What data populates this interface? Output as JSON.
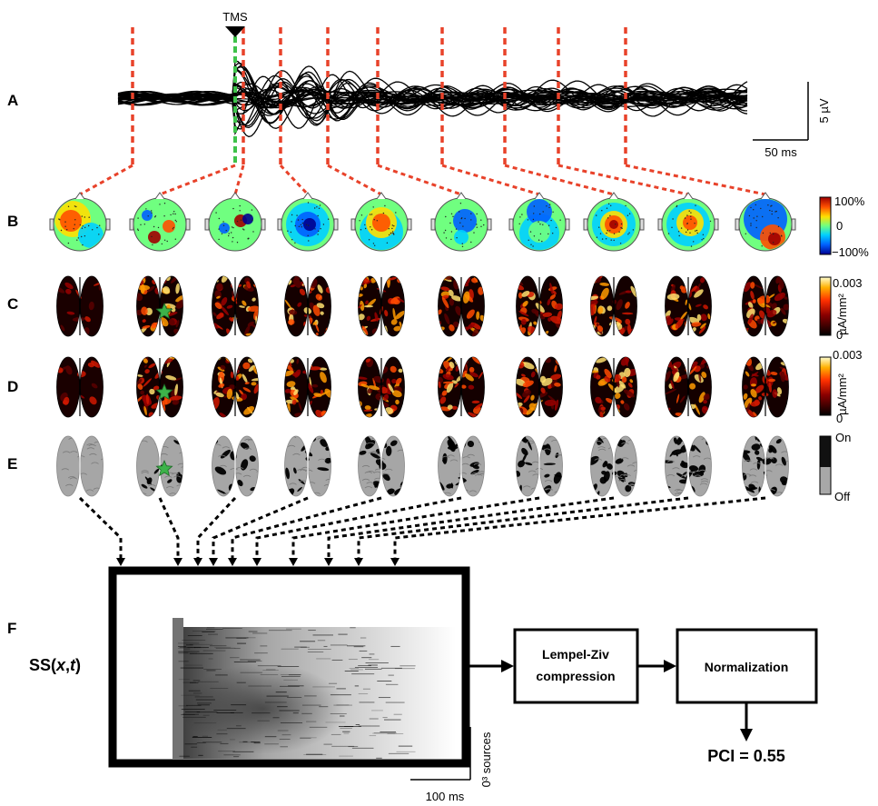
{
  "panel_labels": [
    "A",
    "B",
    "C",
    "D",
    "E",
    "F"
  ],
  "panel_a": {
    "stim_label": "TMS",
    "scale_y_label": "5 µV",
    "scale_x_label": "50 ms"
  },
  "panel_b": {
    "colorbar_ticks": [
      "100%",
      "0",
      "−100%"
    ],
    "colormap": [
      "#00008f",
      "#0060ff",
      "#00d0ff",
      "#70ff80",
      "#ffe000",
      "#ff5000",
      "#a00000"
    ]
  },
  "panel_c": {
    "colorbar_top": "0.003",
    "colorbar_bottom": "0",
    "colorbar_unit": "µA/mm²"
  },
  "panel_d": {
    "colorbar_top": "0.003",
    "colorbar_bottom": "0",
    "colorbar_unit": "µA/mm²"
  },
  "panel_e": {
    "legend_on": "On",
    "legend_off": "Off"
  },
  "panel_f": {
    "matrix_label_prefix": "SS(",
    "matrix_label_x": "x",
    "matrix_label_sep": ",",
    "matrix_label_t": "t",
    "matrix_label_suffix": ")",
    "scale_x_label": "100 ms",
    "scale_y_label": "0³ sources",
    "box1_line1": "Lempel-Ziv",
    "box1_line2": "compression",
    "box2_label": "Normalization",
    "result": "PCI = 0.55"
  },
  "colors": {
    "red_dash": "#e8422a",
    "green_dash": "#3fc24a",
    "star": "#3db34a"
  }
}
